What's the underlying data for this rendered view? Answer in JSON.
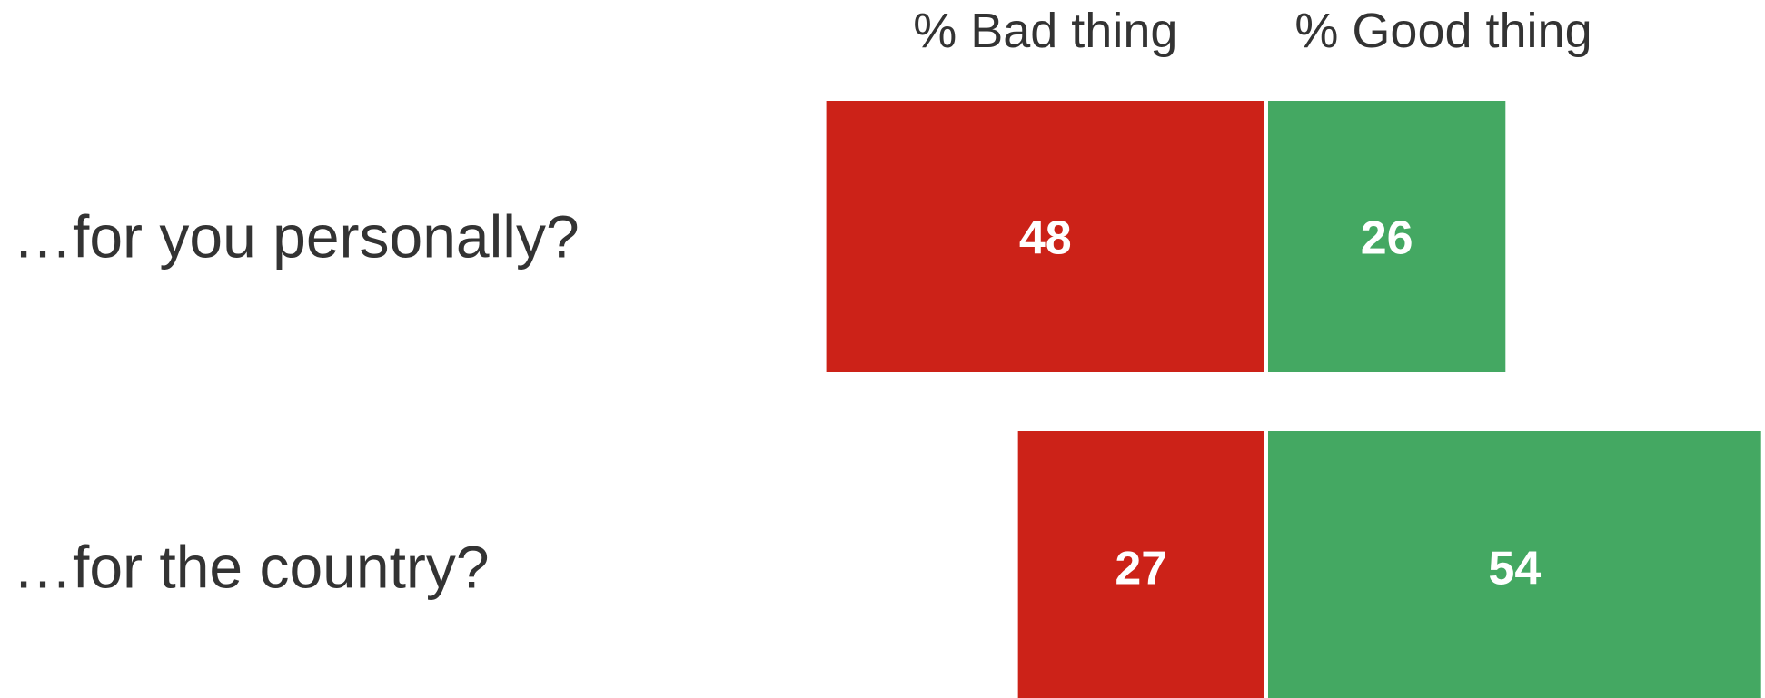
{
  "chart_data": {
    "type": "bar",
    "orientation": "horizontal-diverging",
    "categories": [
      "…for you personally?",
      "…for the country?"
    ],
    "series": [
      {
        "name": "% Bad thing",
        "values": [
          48,
          27
        ],
        "color": "#CC2218"
      },
      {
        "name": "% Good thing",
        "values": [
          26,
          54
        ],
        "color": "#44A862"
      }
    ],
    "data_labels": true,
    "grid": false,
    "legend": "top, above bars"
  }
}
